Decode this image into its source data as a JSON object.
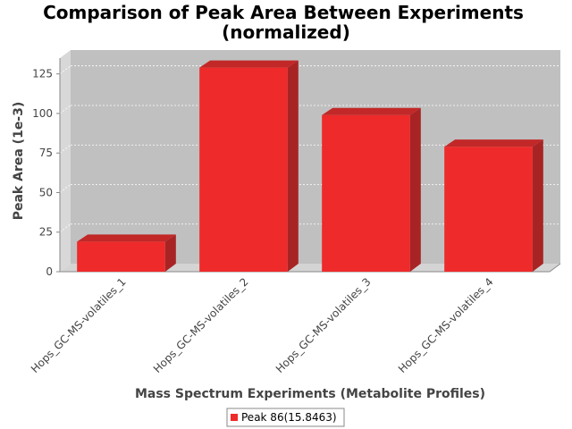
{
  "chart_data": {
    "type": "bar",
    "title_line1": "Comparison of Peak Area Between Experiments",
    "title_line2": "(normalized)",
    "xlabel": "Mass Spectrum Experiments (Metabolite Profiles)",
    "ylabel": "Peak Area (1e-3)",
    "categories": [
      "Hops_GC-MS-volatiles_1",
      "Hops_GC-MS-volatiles_2",
      "Hops_GC-MS-volatiles_3",
      "Hops_GC-MS-volatiles_4"
    ],
    "series": [
      {
        "name": "Peak 86(15.8463)",
        "values": [
          19,
          129,
          99,
          79
        ],
        "color": "#ee2a2a"
      }
    ],
    "ylim": [
      0,
      135
    ],
    "yticks": [
      "0",
      "25",
      "50",
      "75",
      "100",
      "125"
    ],
    "grid": true,
    "legend_position": "bottom"
  }
}
